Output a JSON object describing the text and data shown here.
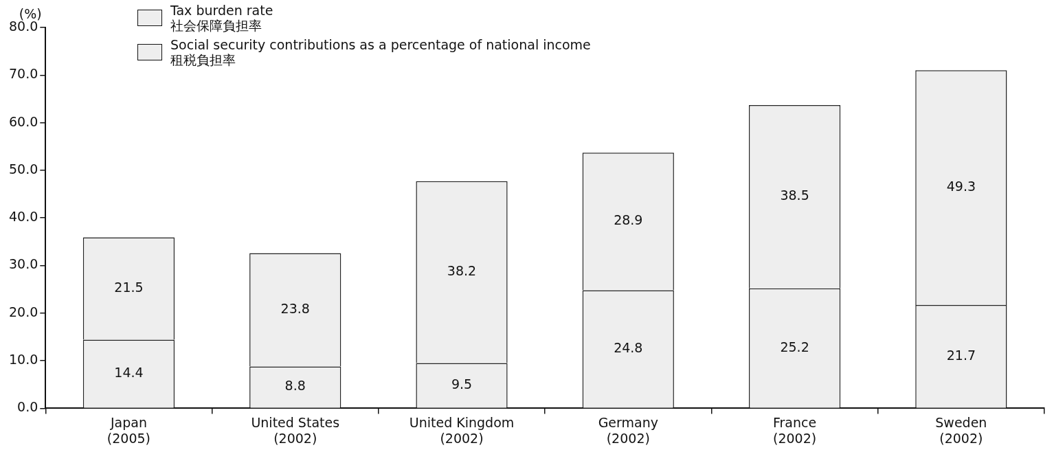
{
  "chart_data": {
    "type": "bar",
    "stacked": true,
    "ylabel": "(%)",
    "categories": [
      "Japan\n(2005)",
      "United States\n(2002)",
      "United Kingdom\n(2002)",
      "Germany\n(2002)",
      "France\n(2002)",
      "Sweden\n(2002)"
    ],
    "series": [
      {
        "name": "Tax burden rate\n社会保障負担率",
        "color": "#eeeeee",
        "values": [
          14.4,
          8.8,
          9.5,
          24.8,
          25.2,
          21.7
        ]
      },
      {
        "name": "Social security contributions as a percentage of national income\n租税負担率",
        "color": "#eeeeee",
        "values": [
          21.5,
          23.8,
          38.2,
          28.9,
          38.5,
          49.3
        ]
      }
    ],
    "ylim": [
      0,
      80
    ],
    "yticks": [
      {
        "value": 0,
        "label": "0.0"
      },
      {
        "value": 10,
        "label": "10.0"
      },
      {
        "value": 20,
        "label": "20.0"
      },
      {
        "value": 30,
        "label": "30.0"
      },
      {
        "value": 40,
        "label": "40.0"
      },
      {
        "value": 50,
        "label": "50.0"
      },
      {
        "value": 60,
        "label": "60.0"
      },
      {
        "value": 70,
        "label": "70.0"
      },
      {
        "value": 80,
        "label": "80.0"
      }
    ],
    "data_labels": true,
    "grid": false,
    "legend": "top left"
  }
}
